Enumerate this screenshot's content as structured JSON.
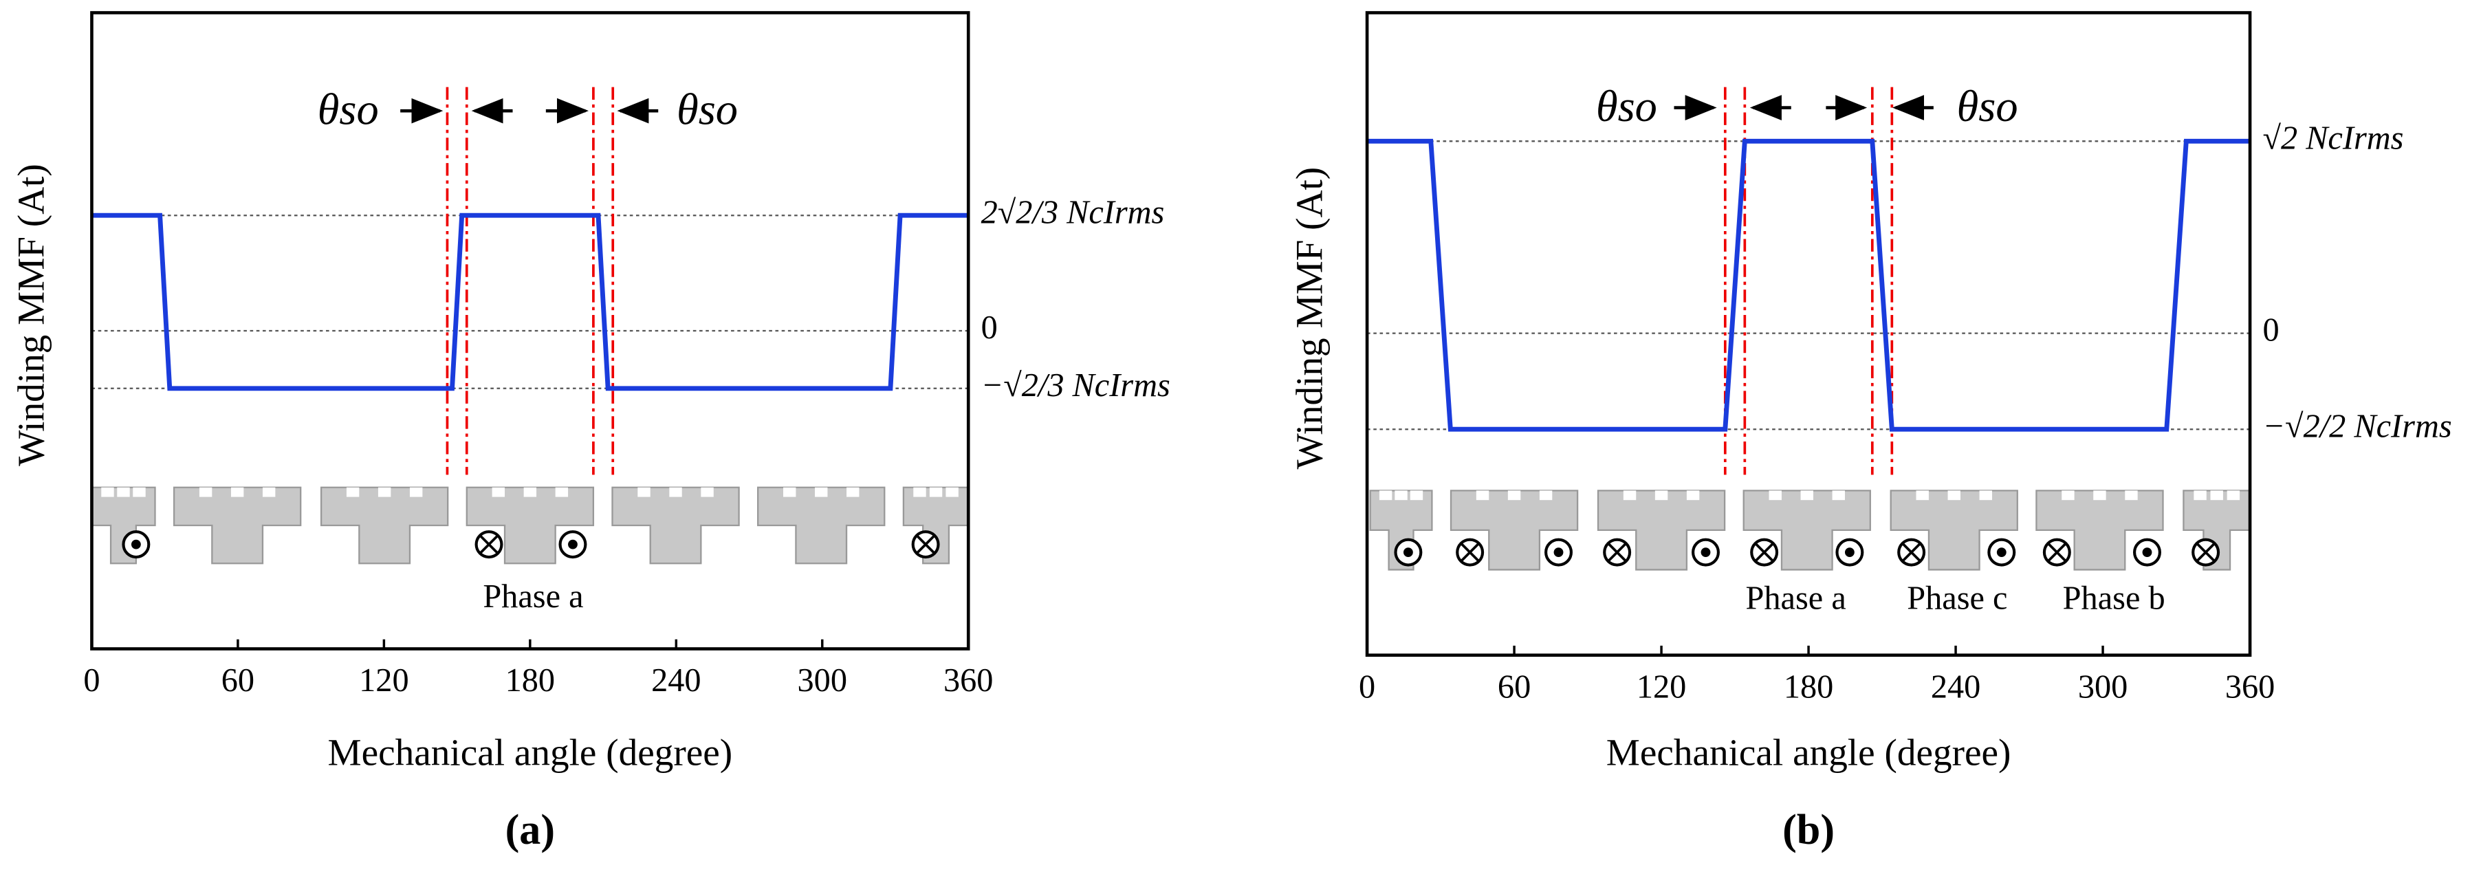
{
  "chart_data": [
    {
      "type": "line",
      "subplot_label": "(a)",
      "xlabel": "Mechanical angle (degree)",
      "ylabel": "Winding MMF (At)",
      "x": [
        0,
        28,
        32,
        148,
        152,
        208,
        212,
        328,
        332,
        360
      ],
      "values": [
        0.943,
        0.943,
        -0.471,
        -0.471,
        0.943,
        0.943,
        -0.471,
        -0.471,
        0.943,
        0.943
      ],
      "color": "#1a3cdc",
      "xlim": [
        0,
        360
      ],
      "xticks": [
        0,
        60,
        120,
        180,
        240,
        300,
        360
      ],
      "ylim": [
        -2.6,
        2.6
      ],
      "yticks": [
        {
          "value": 0.943,
          "label": "2√2/3 NcIrms"
        },
        0,
        {
          "value": -0.471,
          "label": "−√2/3 NcIrms"
        }
      ],
      "grid": true,
      "vlines": [
        146,
        154,
        206,
        214
      ],
      "annotations": [
        "θso",
        "θso",
        "Phase a"
      ]
    },
    {
      "type": "line",
      "subplot_label": "(b)",
      "xlabel": "Mechanical angle (degree)",
      "ylabel": "Winding MMF (At)",
      "x": [
        0,
        26,
        34,
        146,
        154,
        206,
        214,
        326,
        334,
        360
      ],
      "values": [
        1.414,
        1.414,
        -0.707,
        -0.707,
        1.414,
        1.414,
        -0.707,
        -0.707,
        1.414,
        1.414
      ],
      "color": "#1a3cdc",
      "xlim": [
        0,
        360
      ],
      "xticks": [
        0,
        60,
        120,
        180,
        240,
        300,
        360
      ],
      "ylim": [
        -2.37,
        2.36
      ],
      "yticks": [
        {
          "value": 1.414,
          "label": "√2 NcIrms"
        },
        0,
        {
          "value": -0.707,
          "label": "−√2/2 NcIrms"
        }
      ],
      "grid": true,
      "vlines": [
        146,
        154,
        206,
        214
      ],
      "annotations": [
        "θso",
        "θso",
        "Phase a",
        "Phase c",
        "Phase b"
      ]
    }
  ]
}
